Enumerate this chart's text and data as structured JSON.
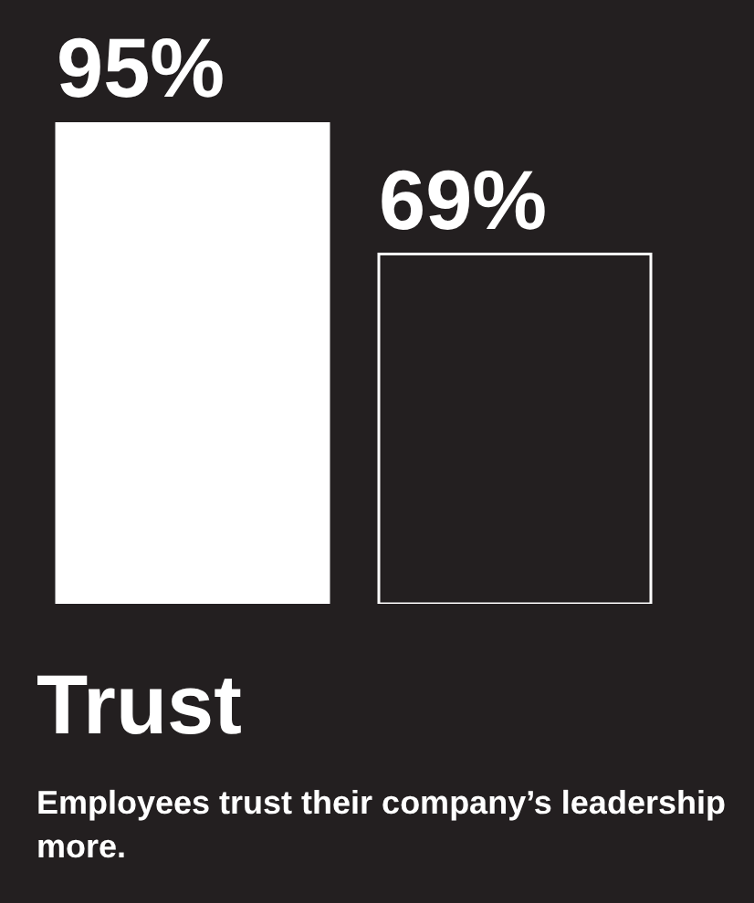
{
  "chart_data": {
    "type": "bar",
    "title": "Trust",
    "subtitle": "Employees trust their company’s leadership more.",
    "categories": [
      null,
      null
    ],
    "values": [
      95,
      69
    ],
    "colors": [
      "#ffffff",
      "#231f20"
    ],
    "value_labels": [
      "95%",
      "69%"
    ]
  }
}
